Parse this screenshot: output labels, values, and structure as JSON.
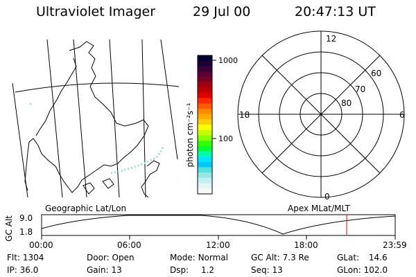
{
  "header": {
    "title": "Ultraviolet Imager",
    "date": "29 Jul 00",
    "time": "20:47:13 UT"
  },
  "colorbar": {
    "unit_label": "photon cm⁻²s⁻¹",
    "ticks": [
      "1000",
      "100"
    ],
    "colors": [
      "#000033",
      "#1a0033",
      "#3a0038",
      "#5a0030",
      "#7a0020",
      "#a00010",
      "#c00000",
      "#e00000",
      "#ff2a00",
      "#ff5a00",
      "#ff8c00",
      "#ffaa00",
      "#ffd000",
      "#ffff00",
      "#c8ff00",
      "#88ff00",
      "#33ff00",
      "#00ff33",
      "#00ffaa",
      "#00e6ff",
      "#00c8ff",
      "#55e0e0",
      "#9ae6e6",
      "#c6eeee",
      "#e2f4f4",
      "#f4fafa"
    ]
  },
  "polar_plot": {
    "mlt_labels": {
      "top": "12",
      "bottom": "0",
      "left": "18",
      "right": "6"
    },
    "lat_labels": [
      "60",
      "70",
      "80"
    ]
  },
  "timeline": {
    "left_title": "Geographic Lat/Lon",
    "right_title": "Apex MLat/MLT",
    "ylabel": "GC Alt",
    "ymax_label": "9.0",
    "ymin_label": "1.8",
    "time_ticks": [
      "00:00",
      "06:00",
      "12:00",
      "18:00",
      "23:59"
    ],
    "current_marker_color": "#ff0000"
  },
  "status": {
    "flt": {
      "label": "Flt:",
      "value": "1304"
    },
    "ip": {
      "label": "IP:",
      "value": "36.0"
    },
    "door": {
      "label": "Door:",
      "value": "Open"
    },
    "gain": {
      "label": "Gain:",
      "value": "13"
    },
    "mode": {
      "label": "Mode:",
      "value": "Normal"
    },
    "dsp": {
      "label": "Dsp:",
      "value": "1.2"
    },
    "gc_alt": {
      "label": "GC Alt:",
      "value": "7.3 Re"
    },
    "seq": {
      "label": "Seq:",
      "value": "13"
    },
    "glat": {
      "label": "GLat:",
      "value": "14.6"
    },
    "glon": {
      "label": "GLon:",
      "value": "102.0"
    }
  }
}
